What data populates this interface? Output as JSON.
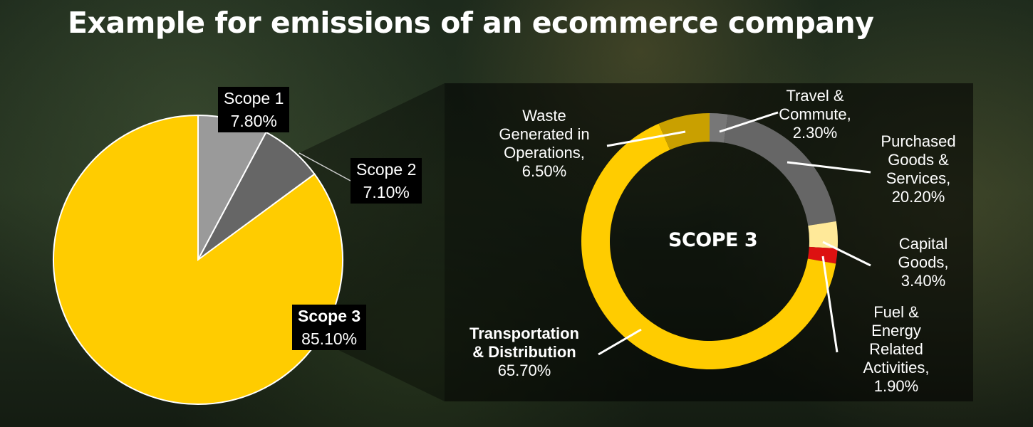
{
  "title": "Example for emissions of an ecommerce company",
  "colors": {
    "yellow": "#ffcc00",
    "light_gray": "#9a9a9a",
    "dark_gray": "#666666",
    "mid_gray": "#777777",
    "gold": "#c9a000",
    "pale_yellow": "#ffe999",
    "red": "#dd1111"
  },
  "chart_data": [
    {
      "type": "pie",
      "categories": [
        "Scope 1",
        "Scope 2",
        "Scope 3"
      ],
      "values": [
        7.8,
        7.1,
        85.1
      ],
      "labels": [
        {
          "name": "Scope 1",
          "value": "7.80%"
        },
        {
          "name": "Scope 2",
          "value": "7.10%"
        },
        {
          "name": "Scope 3",
          "value": "85.10%"
        }
      ]
    },
    {
      "type": "pie",
      "subtype": "donut",
      "center_label": "SCOPE 3",
      "categories": [
        "Travel & Commute",
        "Purchased Goods & Services",
        "Capital Goods",
        "Fuel & Energy Related Activities",
        "Transportation & Distribution",
        "Waste Generated in Operations"
      ],
      "values": [
        2.3,
        20.2,
        3.4,
        1.9,
        65.7,
        6.5
      ],
      "labels": [
        {
          "lines": [
            "Travel &",
            "Commute,",
            "2.30%"
          ]
        },
        {
          "lines": [
            "Purchased",
            "Goods &",
            "Services,",
            "20.20%"
          ]
        },
        {
          "lines": [
            "Capital",
            "Goods,",
            "3.40%"
          ]
        },
        {
          "lines": [
            "Fuel &",
            "Energy",
            "Related",
            "Activities,",
            "1.90%"
          ]
        },
        {
          "lines": [
            "Transportation",
            "& Distribution",
            "65.70%"
          ]
        },
        {
          "lines": [
            "Waste",
            "Generated in",
            "Operations,",
            "6.50%"
          ]
        }
      ]
    }
  ]
}
